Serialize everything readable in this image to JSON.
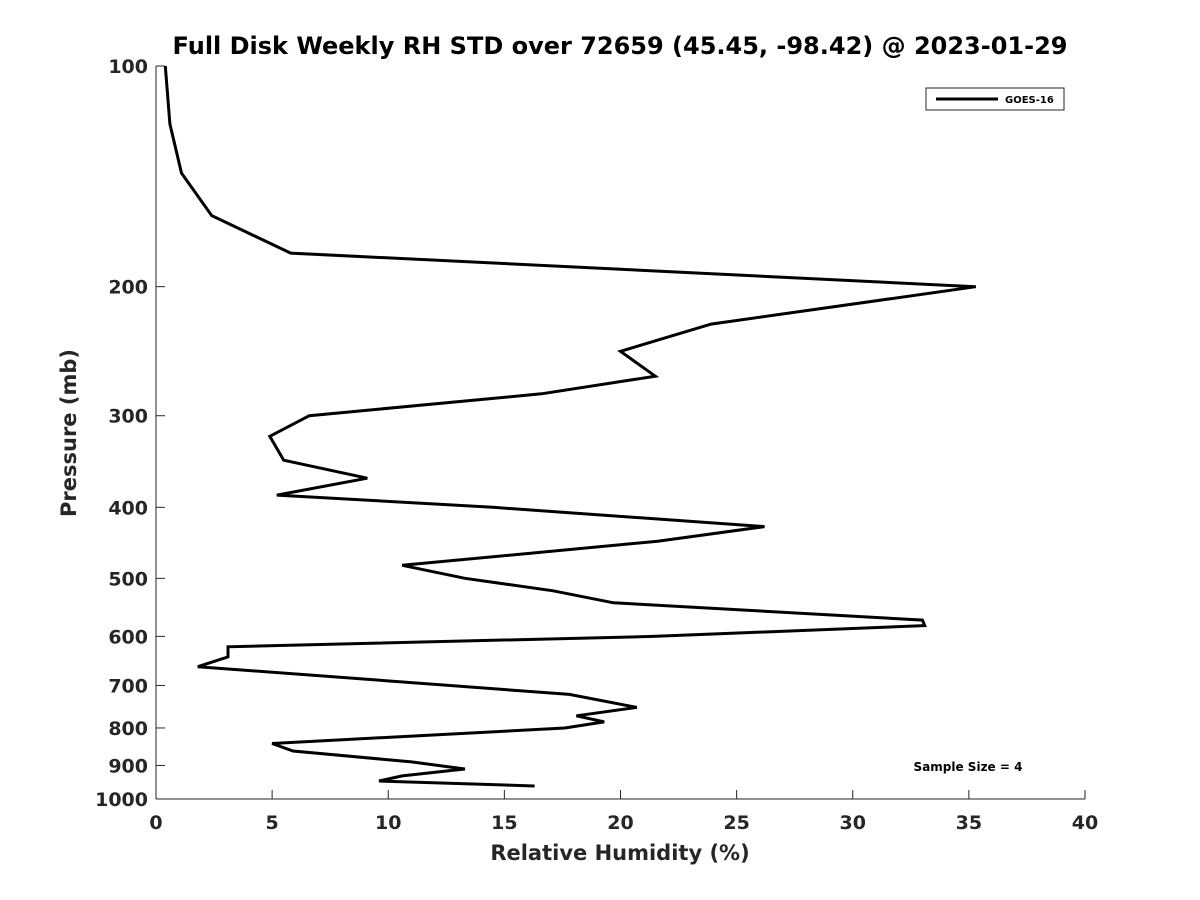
{
  "chart_data": {
    "type": "line",
    "title": "Full Disk Weekly RH STD over 72659 (45.45, -98.42) @ 2023-01-29",
    "xlabel": "Relative Humidity (%)",
    "ylabel": "Pressure (mb)",
    "xlim": [
      0,
      40
    ],
    "ylim": [
      100,
      1000
    ],
    "y_scale": "log",
    "y_reversed": true,
    "x_ticks": [
      0,
      5,
      10,
      15,
      20,
      25,
      30,
      35,
      40
    ],
    "x_tick_labels": [
      "0",
      "5",
      "10",
      "15",
      "20",
      "25",
      "30",
      "35",
      "40"
    ],
    "y_ticks": [
      100,
      200,
      300,
      400,
      500,
      600,
      700,
      800,
      900,
      1000
    ],
    "y_tick_labels": [
      "100",
      "200",
      "300",
      "400",
      "500",
      "600",
      "700",
      "800",
      "900",
      "1000"
    ],
    "grid": false,
    "legend": {
      "position": "top-right",
      "entries": [
        "GOES-16"
      ]
    },
    "annotation": "Sample Size = 4",
    "series": [
      {
        "name": "GOES-16",
        "color": "#000000",
        "points": [
          [
            0.4,
            100
          ],
          [
            0.6,
            120
          ],
          [
            1.1,
            140
          ],
          [
            2.4,
            160
          ],
          [
            5.8,
            180
          ],
          [
            35.3,
            200
          ],
          [
            23.9,
            225
          ],
          [
            20.0,
            245
          ],
          [
            21.5,
            265
          ],
          [
            16.6,
            280
          ],
          [
            6.6,
            300
          ],
          [
            4.9,
            320
          ],
          [
            5.5,
            345
          ],
          [
            9.1,
            365
          ],
          [
            5.2,
            385
          ],
          [
            14.5,
            400
          ],
          [
            26.2,
            425
          ],
          [
            21.6,
            445
          ],
          [
            10.6,
            480
          ],
          [
            13.3,
            500
          ],
          [
            17.1,
            520
          ],
          [
            19.7,
            540
          ],
          [
            33.0,
            570
          ],
          [
            33.1,
            580
          ],
          [
            21.4,
            600
          ],
          [
            3.1,
            620
          ],
          [
            3.1,
            640
          ],
          [
            1.8,
            660
          ],
          [
            17.8,
            720
          ],
          [
            20.7,
            750
          ],
          [
            18.1,
            770
          ],
          [
            19.3,
            785
          ],
          [
            17.6,
            800
          ],
          [
            5.0,
            840
          ],
          [
            5.9,
            860
          ],
          [
            11.0,
            890
          ],
          [
            13.3,
            910
          ],
          [
            10.6,
            930
          ],
          [
            9.6,
            945
          ],
          [
            16.3,
            960
          ]
        ]
      }
    ]
  }
}
